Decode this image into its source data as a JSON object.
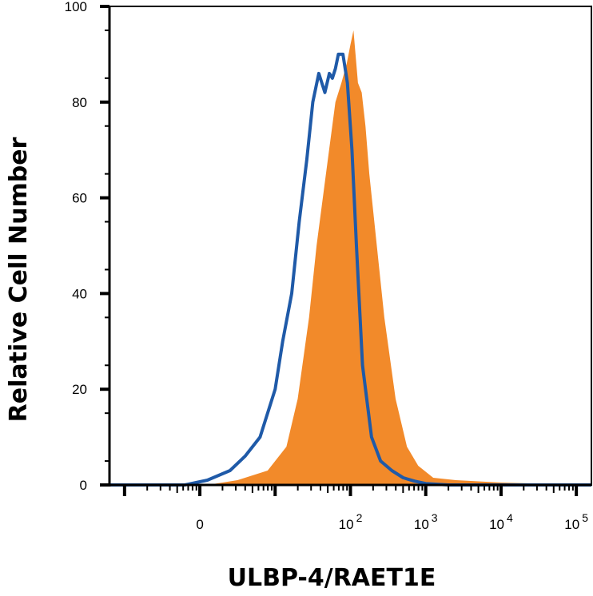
{
  "chart_data": {
    "type": "area",
    "title": "",
    "xlabel": "ULBP-4/RAET1E",
    "ylabel": "Relative Cell Number",
    "x_scale": "biexponential",
    "xlim_exponent": [
      -1.2,
      5.2
    ],
    "ylim": [
      0,
      100
    ],
    "y_ticks": [
      "0",
      "20",
      "40",
      "60",
      "80",
      "100"
    ],
    "x_ticks": [
      {
        "base": "0",
        "exp": "",
        "value": 0
      },
      {
        "base": "10",
        "exp": "2",
        "value": 2
      },
      {
        "base": "10",
        "exp": "3",
        "value": 3
      },
      {
        "base": "10",
        "exp": "4",
        "value": 4
      },
      {
        "base": "10",
        "exp": "5",
        "value": 5
      }
    ],
    "grid": false,
    "legend": "none",
    "series": [
      {
        "style": "filled",
        "color": "#f28a2a",
        "x": [
          0.1,
          0.5,
          0.9,
          1.15,
          1.3,
          1.45,
          1.55,
          1.7,
          1.8,
          1.88,
          1.95,
          2.0,
          2.04,
          2.1,
          2.15,
          2.2,
          2.25,
          2.35,
          2.45,
          2.6,
          2.75,
          2.9,
          3.1,
          3.4,
          4.0,
          5.2
        ],
        "y": [
          0,
          1,
          3,
          8,
          18,
          35,
          50,
          68,
          80,
          84,
          88,
          92,
          95,
          84,
          82,
          75,
          65,
          50,
          35,
          18,
          8,
          4,
          1.5,
          1,
          0.5,
          0
        ]
      },
      {
        "style": "line",
        "color": "#1f5aa8",
        "x": [
          -1.2,
          -0.2,
          0.1,
          0.4,
          0.6,
          0.8,
          1.0,
          1.1,
          1.22,
          1.32,
          1.42,
          1.5,
          1.58,
          1.62,
          1.66,
          1.72,
          1.76,
          1.8,
          1.84,
          1.9,
          1.96,
          2.02,
          2.08,
          2.16,
          2.28,
          2.4,
          2.55,
          2.7,
          2.85,
          3.0,
          3.3,
          5.2
        ],
        "y": [
          0,
          0,
          1,
          3,
          6,
          10,
          20,
          30,
          40,
          55,
          68,
          80,
          86,
          84,
          82,
          86,
          85,
          87,
          90,
          90,
          84,
          70,
          50,
          25,
          10,
          5,
          3,
          1.5,
          0.8,
          0.3,
          0,
          0
        ]
      }
    ]
  }
}
